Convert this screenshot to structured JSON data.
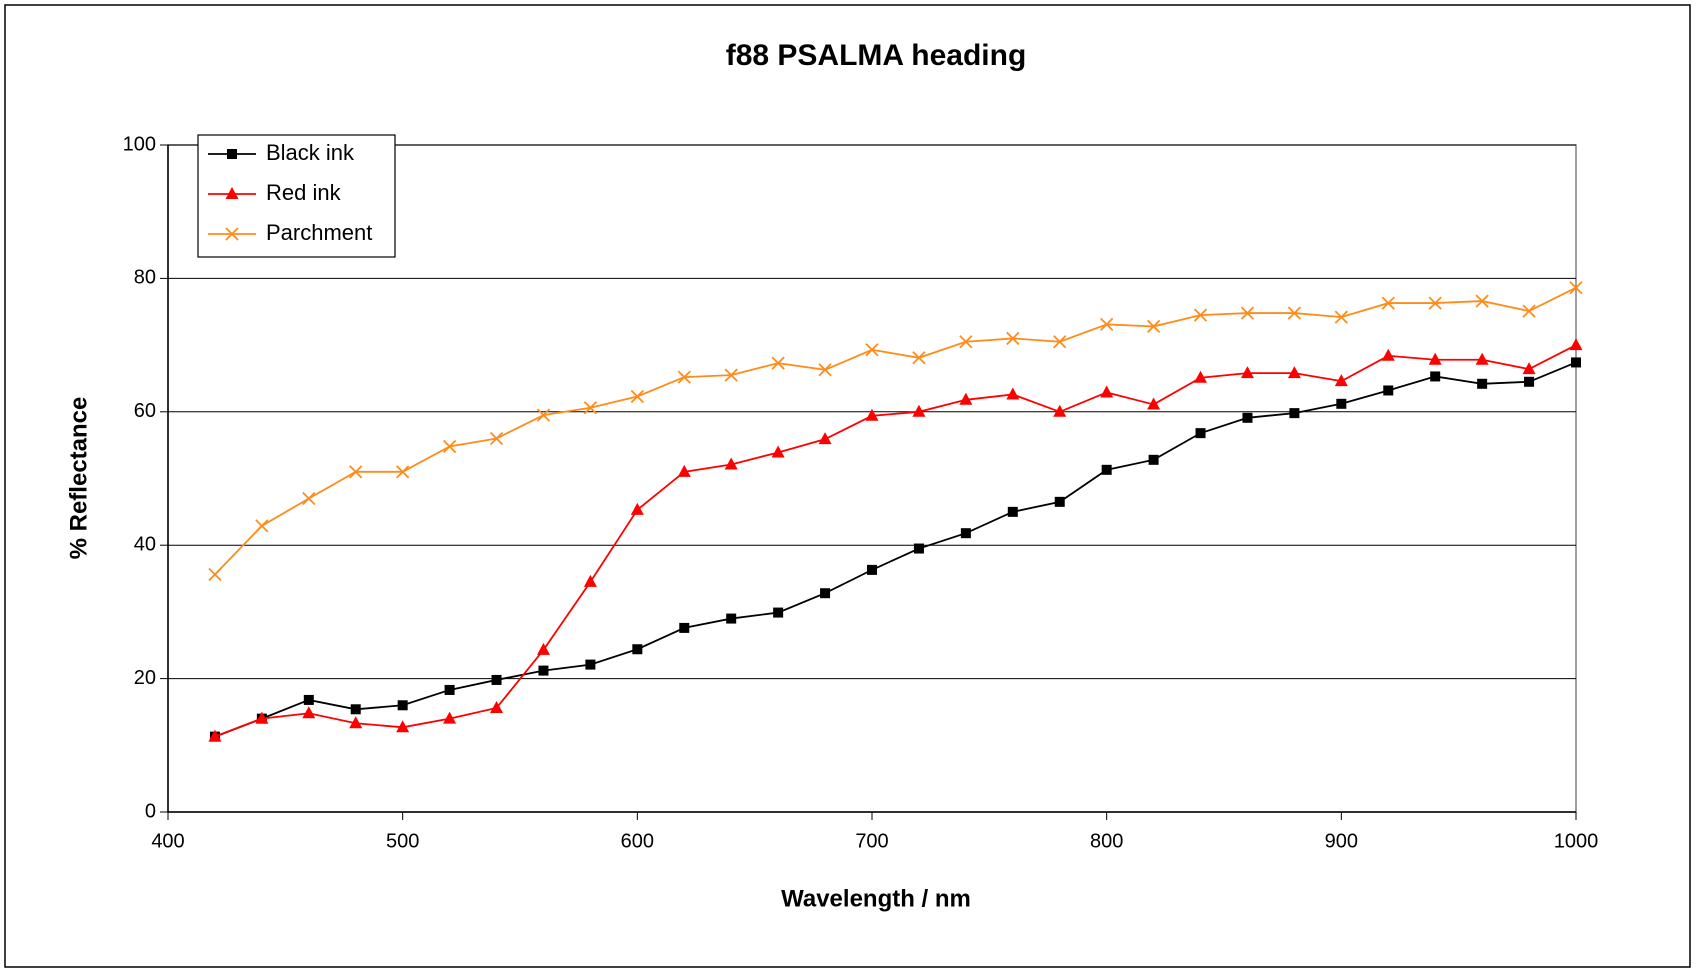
{
  "chart_data": {
    "type": "line",
    "title": "f88 PSALMA heading",
    "xlabel": "Wavelength / nm",
    "ylabel": "% Reflectance",
    "x": [
      420,
      440,
      460,
      480,
      500,
      520,
      540,
      560,
      580,
      600,
      620,
      640,
      660,
      680,
      700,
      720,
      740,
      760,
      780,
      800,
      820,
      840,
      860,
      880,
      900,
      920,
      940,
      960,
      980,
      1000
    ],
    "series": [
      {
        "name": "Black ink",
        "color": "#000000",
        "marker": "square",
        "values": [
          11.3,
          14,
          16.8,
          15.4,
          16,
          18.3,
          19.8,
          21.2,
          22.1,
          24.4,
          27.6,
          29,
          29.9,
          32.8,
          36.3,
          39.5,
          41.8,
          45,
          46.5,
          51.3,
          52.8,
          56.8,
          59.1,
          59.8,
          61.2,
          63.2,
          65.3,
          64.2,
          64.5,
          67.4
        ]
      },
      {
        "name": "Red ink",
        "color": "#ff0000",
        "marker": "triangle",
        "values": [
          11.3,
          14,
          14.8,
          13.3,
          12.7,
          14,
          15.6,
          24.3,
          34.5,
          45.3,
          51,
          52.1,
          53.9,
          55.9,
          59.4,
          60,
          61.8,
          62.6,
          60,
          62.9,
          61.1,
          65.1,
          65.8,
          65.8,
          64.6,
          68.4,
          67.8,
          67.8,
          66.4,
          70
        ]
      },
      {
        "name": "Parchment",
        "color": "#ff8c1a",
        "marker": "x",
        "values": [
          35.6,
          42.9,
          47,
          51,
          51,
          54.8,
          56,
          59.5,
          60.6,
          62.3,
          65.2,
          65.5,
          67.3,
          66.3,
          69.3,
          68.1,
          70.5,
          71,
          70.5,
          73.1,
          72.8,
          74.5,
          74.8,
          74.8,
          74.2,
          76.3,
          76.3,
          76.6,
          75.1,
          78.6
        ]
      }
    ],
    "xlim": [
      400,
      1000
    ],
    "xticks": [
      400,
      500,
      600,
      700,
      800,
      900,
      1000
    ],
    "ylim": [
      0,
      100
    ],
    "yticks": [
      0,
      20,
      40,
      60,
      80,
      100
    ],
    "grid": true,
    "legend": "upper left"
  }
}
